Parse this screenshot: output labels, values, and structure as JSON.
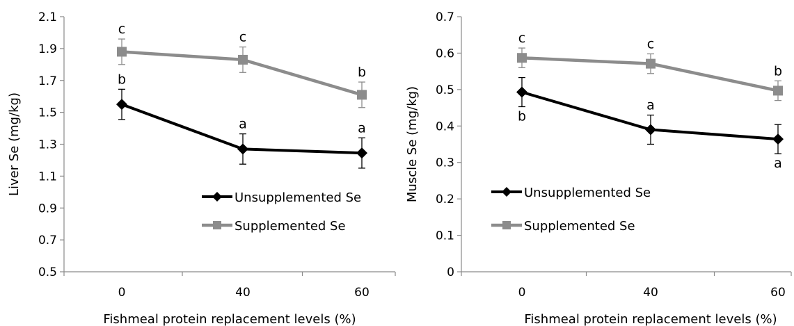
{
  "chart_data": [
    {
      "type": "line",
      "title": "",
      "xlabel": "Fishmeal protein replacement levels (%)",
      "ylabel": "Liver Se (mg/kg)",
      "x": [
        0,
        40,
        60
      ],
      "x_ticks": [
        "0",
        "40",
        "60"
      ],
      "ylim": [
        0.5,
        2.1
      ],
      "y_ticks": [
        "0.5",
        "0.7",
        "0.9",
        "1.1",
        "1.3",
        "1.5",
        "1.7",
        "1.9",
        "2.1"
      ],
      "grid": false,
      "legend_position": "center-right",
      "series": [
        {
          "name": "Unsupplemented Se",
          "color": "#000000",
          "marker": "diamond",
          "values": [
            1.55,
            1.27,
            1.245
          ],
          "errors": [
            0.095,
            0.095,
            0.095
          ],
          "labels": [
            "b",
            "a",
            "a"
          ],
          "label_position": "above"
        },
        {
          "name": "Supplemented Se",
          "color": "#8c8c8c",
          "marker": "square",
          "values": [
            1.88,
            1.83,
            1.61
          ],
          "errors": [
            0.08,
            0.08,
            0.08
          ],
          "labels": [
            "c",
            "c",
            "b"
          ],
          "label_position": "above"
        }
      ]
    },
    {
      "type": "line",
      "title": "",
      "xlabel": "Fishmeal protein replacement levels (%)",
      "ylabel": "Muscle Se (mg/kg)",
      "x": [
        0,
        40,
        60
      ],
      "x_ticks": [
        "0",
        "40",
        "60"
      ],
      "ylim": [
        0,
        0.7
      ],
      "y_ticks": [
        "0",
        "0.1",
        "0.2",
        "0.3",
        "0.4",
        "0.5",
        "0.6",
        "0.7"
      ],
      "grid": false,
      "legend_position": "center-left",
      "series": [
        {
          "name": "Unsupplemented Se",
          "color": "#000000",
          "marker": "diamond",
          "values": [
            0.493,
            0.39,
            0.364
          ],
          "errors": [
            0.04,
            0.04,
            0.04
          ],
          "labels": [
            "b",
            "a",
            "a"
          ],
          "label_position": [
            "below",
            "above",
            "below"
          ]
        },
        {
          "name": "Supplemented Se",
          "color": "#8c8c8c",
          "marker": "square",
          "values": [
            0.587,
            0.571,
            0.497
          ],
          "errors": [
            0.027,
            0.027,
            0.027
          ],
          "labels": [
            "c",
            "c",
            "b"
          ],
          "label_position": "above"
        }
      ]
    }
  ]
}
